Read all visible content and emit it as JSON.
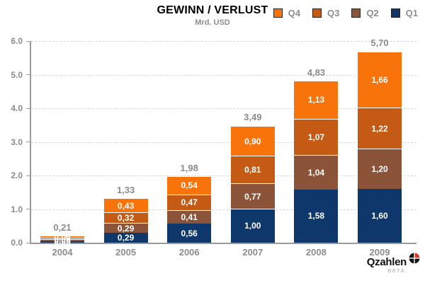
{
  "header": {
    "title": "GEWINN / VERLUST",
    "subtitle": "Mrd. USD"
  },
  "legend": [
    {
      "label": "Q4",
      "color": "#F8730A"
    },
    {
      "label": "Q3",
      "color": "#C45A13"
    },
    {
      "label": "Q2",
      "color": "#8B5438"
    },
    {
      "label": "Q1",
      "color": "#0E386B"
    }
  ],
  "chart_data": {
    "type": "bar",
    "stacked": true,
    "title": "GEWINN / VERLUST",
    "unit_label": "Mrd. USD",
    "categories": [
      "2004",
      "2005",
      "2006",
      "2007",
      "2008",
      "2009"
    ],
    "series": [
      {
        "name": "Q1",
        "color": "#0E386B",
        "values": [
          0.05,
          0.29,
          0.56,
          1.0,
          1.58,
          1.6
        ]
      },
      {
        "name": "Q2",
        "color": "#8B5438",
        "values": [
          0.05,
          0.29,
          0.41,
          0.77,
          1.04,
          1.2
        ]
      },
      {
        "name": "Q3",
        "color": "#C45A13",
        "values": [
          0.05,
          0.32,
          0.47,
          0.81,
          1.07,
          1.22
        ]
      },
      {
        "name": "Q4",
        "color": "#F8730A",
        "values": [
          0.06,
          0.43,
          0.54,
          0.9,
          1.13,
          1.66
        ]
      }
    ],
    "totals": [
      "0,21",
      "1,33",
      "1,98",
      "3,49",
      "4,83",
      "5,70"
    ],
    "segment_labels_2005_to_2009": true,
    "decimal_separator": ",",
    "ylim": [
      0,
      6
    ],
    "yticks": [
      "0.0",
      "1.0",
      "2.0",
      "3.0",
      "4.0",
      "5.0",
      "6.0"
    ],
    "grid": "horizontal-dashed",
    "legend_position": "top-right",
    "legend_order": [
      "Q4",
      "Q3",
      "Q2",
      "Q1"
    ]
  },
  "branding": {
    "logo_text": "Qzahlen",
    "beta_label": "BETA",
    "logo_accent_color": "#E0341E"
  }
}
